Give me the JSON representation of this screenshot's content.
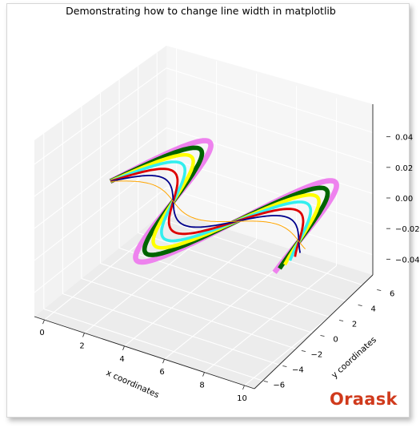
{
  "chart_data": {
    "type": "line",
    "projection": "3d",
    "title": "Demonstrating how to change line width in matplotlib",
    "xlabel": "x coordinates",
    "ylabel": "y coordinates",
    "zlabel": "",
    "xlim": [
      -0.5,
      10.5
    ],
    "ylim": [
      -7,
      7
    ],
    "zlim": [
      -0.055,
      0.055
    ],
    "x_ticks": [
      "0",
      "2",
      "4",
      "6",
      "8",
      "10"
    ],
    "y_ticks": [
      "−6",
      "−4",
      "−2",
      "0",
      "2",
      "4",
      "6"
    ],
    "z_ticks": [
      "−0.04",
      "−0.02",
      "0.00",
      "0.02",
      "0.04"
    ],
    "grid": true,
    "legend": "none",
    "x_start": 0,
    "x_end": 10,
    "z_value": 0,
    "series": [
      {
        "function": "sin(x)",
        "amplitude": 1,
        "color": "#ffa500"
      },
      {
        "function": "sin(x)",
        "amplitude": 2,
        "color": "#00008b"
      },
      {
        "function": "sin(x)",
        "amplitude": 3,
        "color": "#dd0000"
      },
      {
        "function": "sin(x)",
        "amplitude": 4,
        "color": "#33eeee"
      },
      {
        "function": "sin(x)",
        "amplitude": 5,
        "color": "#ffff00"
      },
      {
        "function": "sin(x)",
        "amplitude": 6,
        "color": "#006400"
      },
      {
        "function": "sin(x)",
        "amplitude": 7,
        "color": "#ee82ee"
      }
    ]
  },
  "watermark": {
    "text": "Oraask",
    "color": "#d03a1c"
  }
}
